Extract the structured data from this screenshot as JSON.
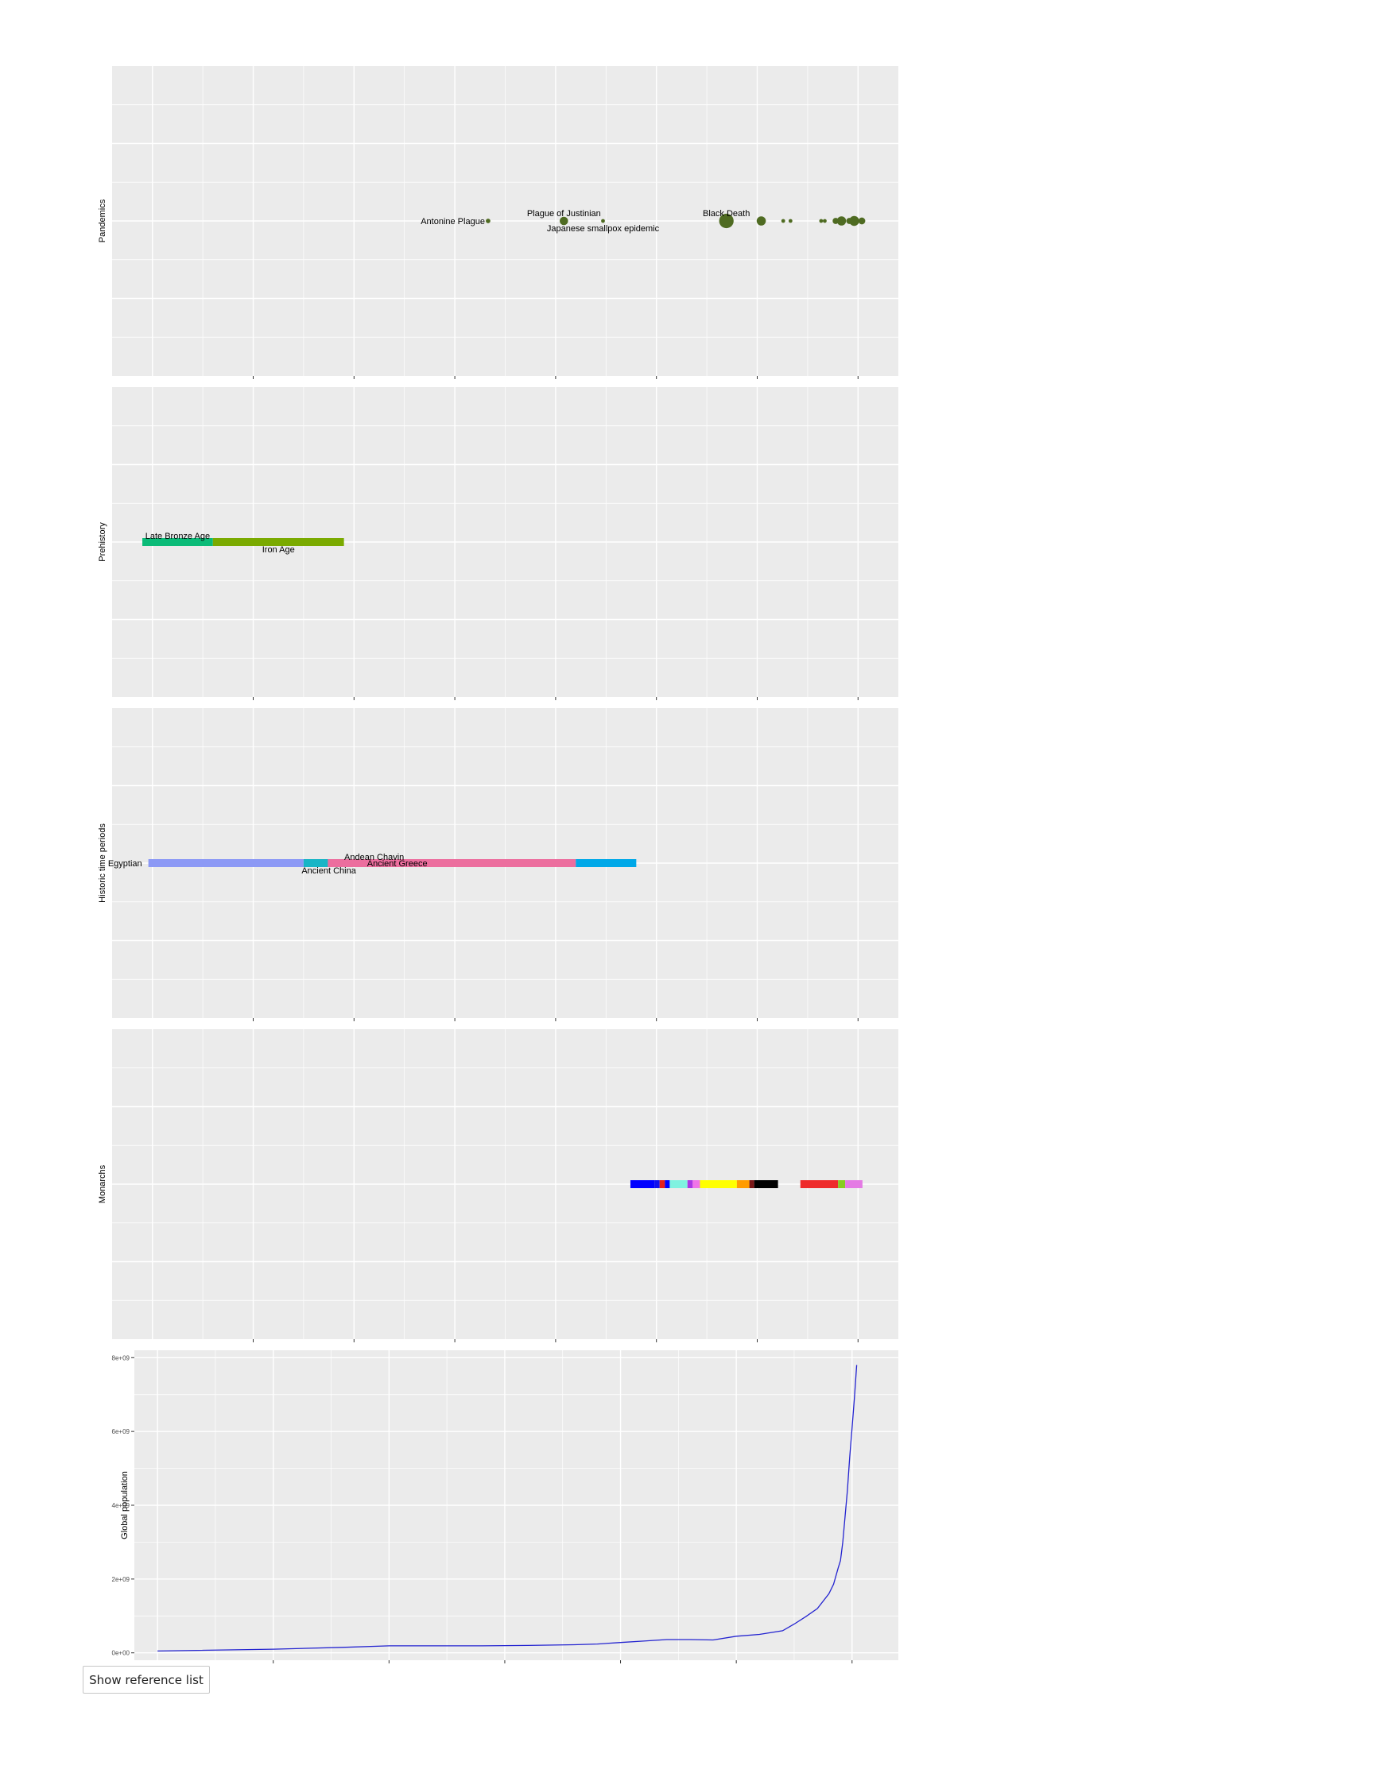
{
  "chart_data": [
    {
      "type": "scatter",
      "ylabel": "Pandemics",
      "xlim": [
        -1700,
        2200
      ],
      "points": [
        {
          "x": 165,
          "size": 1.2,
          "label": "Antonine Plague",
          "label_pos": "left"
        },
        {
          "x": 541,
          "size": 2.2,
          "label": "Plague of Justinian",
          "label_pos": "above"
        },
        {
          "x": 735,
          "size": 1.0,
          "label": "Japanese smallpox epidemic",
          "label_pos": "below"
        },
        {
          "x": 1347,
          "size": 3.8,
          "label": "Black Death",
          "label_pos": "above"
        },
        {
          "x": 1520,
          "size": 2.4
        },
        {
          "x": 1629,
          "size": 1.0
        },
        {
          "x": 1665,
          "size": 1.0
        },
        {
          "x": 1817,
          "size": 1.0
        },
        {
          "x": 1835,
          "size": 1.0
        },
        {
          "x": 1889,
          "size": 1.6
        },
        {
          "x": 1918,
          "size": 2.4
        },
        {
          "x": 1957,
          "size": 1.6
        },
        {
          "x": 1968,
          "size": 1.6
        },
        {
          "x": 1981,
          "size": 2.6
        },
        {
          "x": 2009,
          "size": 1.0
        },
        {
          "x": 2019,
          "size": 1.8
        }
      ]
    },
    {
      "type": "bar",
      "orientation": "horizontal",
      "ylabel": "Prehistory",
      "xlim": [
        -1700,
        2200
      ],
      "segments": [
        {
          "start": -1550,
          "end": -1200,
          "color": "#0bbb78",
          "label": "Late Bronze Age",
          "label_pos": "above"
        },
        {
          "start": -1200,
          "end": -550,
          "color": "#7aaa00",
          "label": "Iron Age",
          "label_pos": "below"
        }
      ]
    },
    {
      "type": "bar",
      "orientation": "horizontal",
      "ylabel": "Historic time periods",
      "xlim": [
        -1700,
        2200
      ],
      "segments": [
        {
          "start": -1520,
          "end": -750,
          "color": "#8c99f5",
          "label": "Egyptian",
          "label_pos": "left"
        },
        {
          "start": -750,
          "end": -500,
          "color": "#18b5c6",
          "label": "Ancient China",
          "label_pos": "below"
        },
        {
          "start": -500,
          "end": -300,
          "color": "#00b4ec",
          "label": "Andean Chavin",
          "label_pos": "above"
        },
        {
          "start": -630,
          "end": 600,
          "color": "#ec6e9e",
          "label": "Ancient Greece",
          "label_pos": "inside"
        },
        {
          "start": 600,
          "end": 900,
          "color": "#00a8e8"
        }
      ]
    },
    {
      "type": "bar",
      "orientation": "horizontal",
      "ylabel": "Monarchs",
      "xlim": [
        -1700,
        2200
      ],
      "segments": [
        {
          "start": 871,
          "end": 990,
          "color": "#0000ff"
        },
        {
          "start": 990,
          "end": 1016,
          "color": "#1010ee"
        },
        {
          "start": 1016,
          "end": 1042,
          "color": "#e8201a"
        },
        {
          "start": 1042,
          "end": 1066,
          "color": "#0000ff"
        },
        {
          "start": 1066,
          "end": 1154,
          "color": "#7ff2e0"
        },
        {
          "start": 1154,
          "end": 1180,
          "color": "#ab37e5"
        },
        {
          "start": 1180,
          "end": 1216,
          "color": "#f074e8"
        },
        {
          "start": 1216,
          "end": 1399,
          "color": "#ffff00"
        },
        {
          "start": 1399,
          "end": 1461,
          "color": "#ff9b00"
        },
        {
          "start": 1461,
          "end": 1485,
          "color": "#7a1818"
        },
        {
          "start": 1485,
          "end": 1603,
          "color": "#000000"
        },
        {
          "start": 1714,
          "end": 1901,
          "color": "#ee2b2b"
        },
        {
          "start": 1901,
          "end": 1936,
          "color": "#88cc22"
        },
        {
          "start": 1936,
          "end": 2022,
          "color": "#e47ae4"
        }
      ]
    },
    {
      "type": "line",
      "ylabel": "Global population",
      "xlim": [
        -1100,
        2200
      ],
      "ylim": [
        -200000000.0,
        8200000000.0
      ],
      "yticks": [
        0,
        2000000000,
        4000000000,
        6000000000,
        8000000000
      ],
      "yticklabels": [
        "0e+00",
        "2e+09",
        "4e+09",
        "6e+09",
        "8e+09"
      ],
      "x": [
        -1000,
        -500,
        -200,
        1,
        200,
        400,
        600,
        800,
        900,
        1000,
        1100,
        1200,
        1300,
        1400,
        1500,
        1600,
        1700,
        1750,
        1800,
        1850,
        1900,
        1920,
        1940,
        1950,
        1960,
        1970,
        1980,
        1990,
        2000,
        2010,
        2020
      ],
      "y": [
        50000000,
        100000000,
        150000000,
        190000000,
        190000000,
        190000000,
        200000000,
        220000000,
        240000000,
        280000000,
        320000000,
        360000000,
        360000000,
        350000000,
        450000000,
        500000000,
        600000000,
        780000000,
        980000000,
        1200000000,
        1600000000,
        1860000000,
        2300000000,
        2500000000,
        3000000000,
        3700000000,
        4400000000,
        5300000000,
        6100000000,
        6900000000,
        7800000000
      ],
      "color": "#2323d0"
    }
  ],
  "controls": {
    "reference_button": "Show reference list"
  }
}
